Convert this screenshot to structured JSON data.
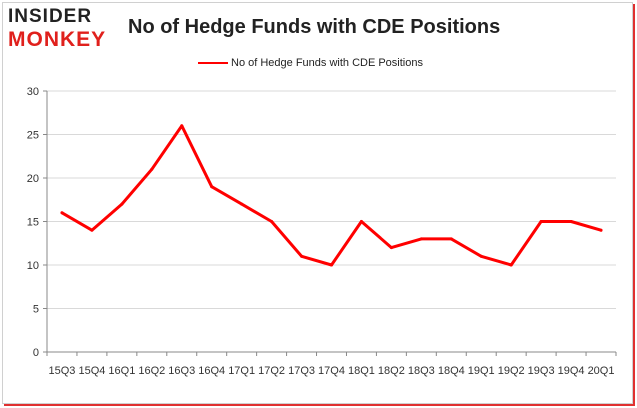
{
  "logo": {
    "top": "INSIDER",
    "bottom": "MONKEY"
  },
  "colors": {
    "series": "#ff0000",
    "grid": "#d9d9d9",
    "axis": "#888888"
  },
  "chart_data": {
    "type": "line",
    "title": "No of Hedge Funds with CDE Positions",
    "legend_position": "top",
    "grid": true,
    "xlabel": "",
    "ylabel": "",
    "ylim": [
      0,
      30
    ],
    "yticks": [
      "0",
      "5",
      "10",
      "15",
      "20",
      "25",
      "30"
    ],
    "x": [
      "15Q3",
      "15Q4",
      "16Q1",
      "16Q2",
      "16Q3",
      "16Q4",
      "17Q1",
      "17Q2",
      "17Q3",
      "17Q4",
      "18Q1",
      "18Q2",
      "18Q3",
      "18Q4",
      "19Q1",
      "19Q2",
      "19Q3",
      "19Q4",
      "20Q1"
    ],
    "series": [
      {
        "name": "No of Hedge Funds with CDE Positions",
        "values": [
          16,
          14,
          17,
          21,
          26,
          19,
          17,
          15,
          11,
          10,
          15,
          12,
          13,
          13,
          11,
          10,
          15,
          15,
          14
        ]
      }
    ]
  }
}
